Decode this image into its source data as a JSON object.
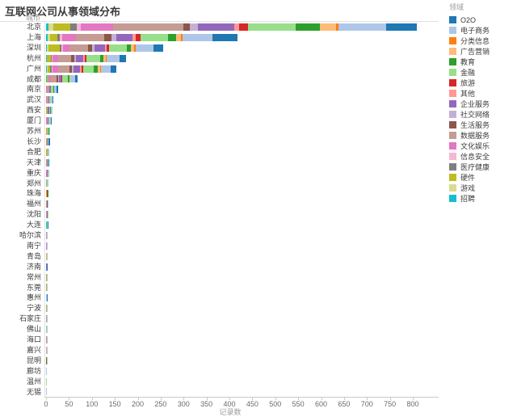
{
  "title": "互联网公司从事领域分布",
  "row_header": "城市",
  "legend": {
    "header": "领域",
    "position": "right"
  },
  "axis": {
    "x_label": "记录数",
    "x_ticks": [
      0,
      50,
      100,
      150,
      200,
      250,
      300,
      350,
      400,
      450,
      500,
      550,
      600,
      650,
      700,
      750,
      800
    ]
  },
  "chart_data": {
    "type": "bar",
    "orientation": "horizontal",
    "stacked": true,
    "stack_order": "reverse-legend",
    "grid": false,
    "legend_position": "right",
    "title": "互联网公司从事领域分布",
    "xlabel": "记录数",
    "ylabel": "城市",
    "xlim": [
      0,
      800
    ],
    "categories": [
      "北京",
      "上海",
      "深圳",
      "杭州",
      "广州",
      "成都",
      "南京",
      "武汉",
      "西安",
      "厦门",
      "苏州",
      "长沙",
      "合肥",
      "天津",
      "重庆",
      "郑州",
      "珠海",
      "福州",
      "沈阳",
      "大连",
      "哈尔滨",
      "南宁",
      "青岛",
      "济南",
      "常州",
      "东莞",
      "惠州",
      "宁波",
      "石家庄",
      "佛山",
      "海口",
      "嘉兴",
      "昆明",
      "廊坊",
      "温州",
      "无锡"
    ],
    "series": [
      {
        "name": "O2O",
        "color": "#1f77b4",
        "values": [
          67,
          54,
          20,
          13,
          11,
          6,
          4,
          2,
          0,
          1,
          0,
          2,
          0,
          1,
          0,
          0,
          0,
          0,
          0,
          1,
          0,
          0,
          0,
          1,
          0,
          0,
          1,
          0,
          0,
          0,
          0,
          0,
          0,
          0,
          0,
          0
        ]
      },
      {
        "name": "电子商务",
        "color": "#aec7e8",
        "values": [
          104,
          65,
          40,
          28,
          22,
          10,
          5,
          4,
          3,
          3,
          2,
          2,
          1,
          0,
          1,
          1,
          0,
          1,
          0,
          0,
          1,
          1,
          0,
          0,
          0,
          1,
          1,
          1,
          1,
          1,
          0,
          1,
          0,
          1,
          0,
          1
        ]
      },
      {
        "name": "分类信息",
        "color": "#ff7f0e",
        "values": [
          5,
          4,
          3,
          2,
          2,
          0,
          0,
          0,
          0,
          0,
          0,
          0,
          0,
          0,
          0,
          0,
          0,
          0,
          0,
          0,
          0,
          0,
          0,
          0,
          0,
          0,
          0,
          0,
          0,
          0,
          0,
          0,
          0,
          0,
          0,
          0
        ]
      },
      {
        "name": "广告营销",
        "color": "#ffbb78",
        "values": [
          35,
          10,
          6,
          5,
          5,
          2,
          0,
          0,
          0,
          0,
          0,
          0,
          0,
          0,
          0,
          0,
          0,
          0,
          0,
          0,
          0,
          0,
          0,
          0,
          0,
          0,
          0,
          0,
          0,
          0,
          0,
          0,
          0,
          0,
          0,
          0
        ]
      },
      {
        "name": "教育",
        "color": "#2ca02c",
        "values": [
          53,
          18,
          10,
          8,
          8,
          3,
          2,
          0,
          2,
          0,
          1,
          0,
          0,
          0,
          0,
          1,
          1,
          0,
          0,
          0,
          0,
          0,
          0,
          0,
          0,
          0,
          0,
          0,
          0,
          0,
          0,
          0,
          0,
          0,
          0,
          0
        ]
      },
      {
        "name": "金融",
        "color": "#98df8a",
        "values": [
          104,
          60,
          38,
          30,
          24,
          12,
          5,
          3,
          2,
          2,
          2,
          1,
          1,
          1,
          1,
          2,
          1,
          0,
          1,
          1,
          0,
          0,
          1,
          1,
          1,
          0,
          0,
          0,
          0,
          1,
          1,
          0,
          1,
          0,
          1,
          0
        ]
      },
      {
        "name": "旅游",
        "color": "#d62728",
        "values": [
          19,
          10,
          5,
          4,
          4,
          2,
          0,
          0,
          0,
          0,
          0,
          0,
          0,
          0,
          0,
          0,
          1,
          0,
          0,
          0,
          0,
          0,
          1,
          0,
          0,
          0,
          0,
          0,
          0,
          0,
          0,
          0,
          0,
          0,
          0,
          0
        ]
      },
      {
        "name": "其他",
        "color": "#ff9896",
        "values": [
          12,
          8,
          5,
          3,
          3,
          0,
          0,
          0,
          0,
          0,
          0,
          0,
          0,
          0,
          1,
          0,
          0,
          0,
          0,
          0,
          0,
          1,
          1,
          0,
          0,
          0,
          0,
          0,
          0,
          0,
          0,
          1,
          0,
          0,
          0,
          0
        ]
      },
      {
        "name": "企业服务",
        "color": "#9467bd",
        "values": [
          79,
          35,
          22,
          16,
          14,
          6,
          4,
          2,
          3,
          2,
          0,
          1,
          0,
          2,
          2,
          0,
          0,
          0,
          2,
          0,
          0,
          0,
          0,
          1,
          0,
          0,
          0,
          0,
          0,
          0,
          0,
          0,
          0,
          0,
          0,
          0
        ]
      },
      {
        "name": "社交网络",
        "color": "#c5b0d5",
        "values": [
          18,
          10,
          6,
          4,
          4,
          2,
          0,
          0,
          0,
          0,
          0,
          0,
          0,
          1,
          0,
          0,
          0,
          0,
          0,
          0,
          0,
          0,
          0,
          0,
          0,
          0,
          0,
          0,
          0,
          0,
          0,
          0,
          0,
          0,
          0,
          0
        ]
      },
      {
        "name": "生活服务",
        "color": "#8c564b",
        "values": [
          14,
          16,
          8,
          6,
          5,
          3,
          0,
          0,
          0,
          0,
          0,
          0,
          0,
          0,
          0,
          0,
          0,
          1,
          0,
          0,
          0,
          0,
          0,
          0,
          0,
          0,
          0,
          0,
          0,
          0,
          0,
          0,
          1,
          0,
          0,
          0
        ]
      },
      {
        "name": "数据服务",
        "color": "#c49c94",
        "values": [
          153,
          62,
          40,
          28,
          25,
          12,
          5,
          3,
          3,
          2,
          2,
          0,
          2,
          1,
          0,
          1,
          0,
          2,
          1,
          1,
          2,
          0,
          0,
          0,
          1,
          0,
          0,
          0,
          1,
          0,
          0,
          0,
          0,
          0,
          0,
          0
        ]
      },
      {
        "name": "文化娱乐",
        "color": "#e377c2",
        "values": [
          70,
          30,
          15,
          12,
          12,
          6,
          2,
          2,
          0,
          1,
          0,
          1,
          0,
          0,
          1,
          0,
          0,
          0,
          0,
          0,
          0,
          1,
          0,
          0,
          0,
          0,
          0,
          0,
          0,
          0,
          1,
          0,
          0,
          0,
          0,
          0
        ]
      },
      {
        "name": "信息安全",
        "color": "#f7b6d2",
        "values": [
          9,
          5,
          3,
          2,
          2,
          0,
          0,
          0,
          0,
          0,
          0,
          0,
          0,
          0,
          0,
          0,
          0,
          0,
          0,
          0,
          0,
          0,
          0,
          0,
          0,
          0,
          0,
          0,
          0,
          0,
          0,
          0,
          0,
          0,
          0,
          0
        ]
      },
      {
        "name": "医疗健康",
        "color": "#7f7f7f",
        "values": [
          14,
          6,
          4,
          3,
          3,
          0,
          0,
          0,
          0,
          0,
          0,
          0,
          0,
          0,
          0,
          0,
          0,
          0,
          0,
          0,
          0,
          0,
          0,
          0,
          0,
          0,
          0,
          0,
          0,
          0,
          0,
          0,
          0,
          0,
          0,
          0
        ]
      },
      {
        "name": "硬件",
        "color": "#bcbd22",
        "values": [
          38,
          15,
          25,
          8,
          6,
          3,
          0,
          0,
          1,
          0,
          2,
          1,
          2,
          0,
          0,
          0,
          2,
          0,
          0,
          0,
          0,
          0,
          0,
          0,
          0,
          1,
          0,
          1,
          0,
          0,
          0,
          0,
          0,
          0,
          0,
          0
        ]
      },
      {
        "name": "游戏",
        "color": "#dbdb8d",
        "values": [
          10,
          6,
          3,
          1,
          2,
          1,
          0,
          0,
          0,
          0,
          0,
          0,
          0,
          0,
          0,
          0,
          0,
          0,
          0,
          0,
          0,
          0,
          0,
          0,
          0,
          0,
          0,
          0,
          0,
          0,
          0,
          0,
          0,
          0,
          0,
          0
        ]
      },
      {
        "name": "招聘",
        "color": "#17becf",
        "values": [
          5,
          3,
          2,
          1,
          1,
          1,
          0,
          0,
          0,
          0,
          0,
          0,
          0,
          0,
          0,
          0,
          0,
          0,
          0,
          1,
          0,
          0,
          0,
          0,
          0,
          0,
          0,
          0,
          0,
          0,
          0,
          0,
          0,
          0,
          0,
          0
        ]
      }
    ]
  }
}
